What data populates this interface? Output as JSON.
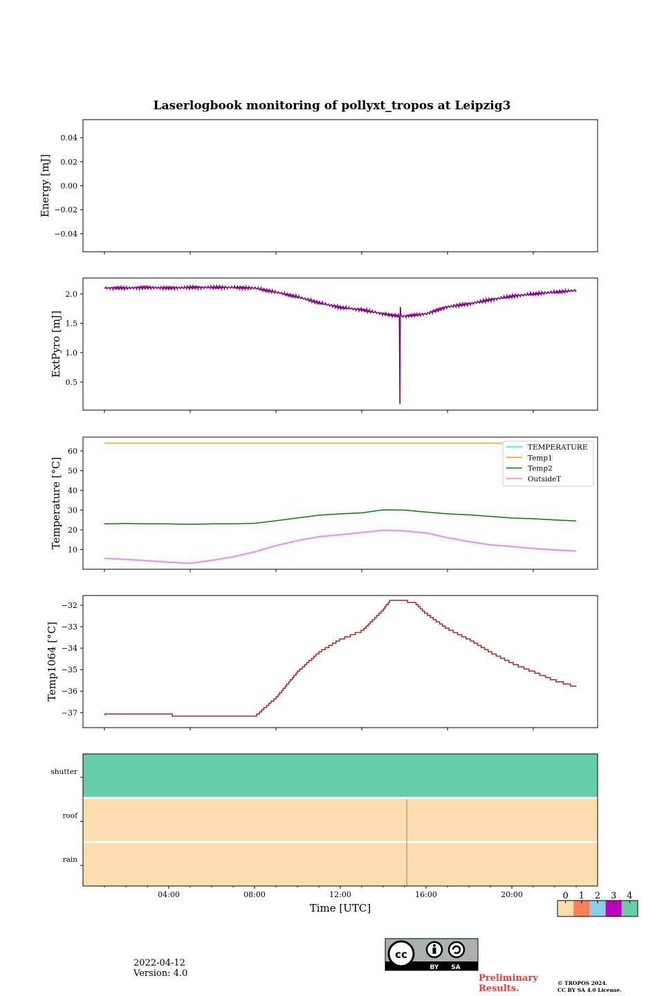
{
  "title": "Laserlogbook monitoring of pollyxt_tropos at Leipzig3",
  "chart_data": [
    {
      "type": "line",
      "ylabel": "Energy [mJ]",
      "ylim": [
        -0.055,
        0.055
      ],
      "yticks": [
        "0.04",
        "0.02",
        "0.00",
        "−0.02",
        "−0.04"
      ],
      "ytick_values": [
        0.04,
        0.02,
        0,
        -0.02,
        -0.04
      ],
      "series": []
    },
    {
      "type": "line",
      "ylabel": "ExtPyro [mJ]",
      "ylim": [
        0.02,
        2.27
      ],
      "yticks": [
        "2.0",
        "1.5",
        "1.0",
        "0.5"
      ],
      "ytick_values": [
        2.0,
        1.5,
        1.0,
        0.5
      ],
      "series": [
        {
          "name": "ExtPyro",
          "color": "#800080",
          "x": [
            1,
            2,
            3,
            4,
            5,
            6,
            7,
            8,
            9,
            10,
            11,
            12,
            13,
            14,
            14.75,
            14.78,
            14.8,
            14.83,
            15,
            16,
            17,
            18,
            19,
            20,
            21,
            22,
            23
          ],
          "y": [
            2.1,
            2.1,
            2.11,
            2.1,
            2.11,
            2.11,
            2.11,
            2.1,
            2.03,
            1.95,
            1.85,
            1.77,
            1.73,
            1.66,
            1.62,
            0.12,
            1.78,
            1.62,
            1.62,
            1.66,
            1.78,
            1.83,
            1.9,
            1.96,
            2.0,
            2.03,
            2.06
          ]
        }
      ]
    },
    {
      "type": "line",
      "ylabel": "Temperature [°C]",
      "ylim": [
        0,
        67
      ],
      "yticks": [
        "60",
        "50",
        "40",
        "30",
        "20",
        "10"
      ],
      "ytick_values": [
        60,
        50,
        40,
        30,
        20,
        10
      ],
      "legend": "top-right",
      "series": [
        {
          "name": "TEMPERATURE",
          "color": "#00ffff",
          "x": [],
          "y": []
        },
        {
          "name": "Temp1",
          "color": "#ffa500",
          "x": [
            1,
            23
          ],
          "y": [
            64,
            64
          ]
        },
        {
          "name": "Temp2",
          "color": "#008000",
          "x": [
            1,
            2,
            3,
            4,
            5,
            6,
            7,
            8,
            9,
            10,
            11,
            12,
            13,
            14,
            15,
            16,
            17,
            18,
            19,
            20,
            21,
            22,
            23
          ],
          "y": [
            23,
            23.2,
            23,
            23,
            22.8,
            23,
            23,
            23.3,
            24.6,
            26,
            27.4,
            28.1,
            28.6,
            30.1,
            30,
            29,
            28.1,
            27.6,
            26.8,
            26,
            25.6,
            25,
            24.5
          ]
        },
        {
          "name": "OutsideT",
          "color": "#ee82ee",
          "x": [
            1,
            2,
            3,
            4,
            5,
            6,
            7,
            8,
            9,
            10,
            11,
            12,
            13,
            14,
            15,
            16,
            17,
            18,
            19,
            20,
            21,
            22,
            23
          ],
          "y": [
            5.5,
            5,
            4.3,
            3.6,
            3,
            4.5,
            6.3,
            8.8,
            12,
            14.5,
            16.5,
            17.5,
            18.6,
            19.8,
            19.4,
            18.4,
            16,
            14,
            12.4,
            11.5,
            10.5,
            9.8,
            9.2
          ]
        }
      ]
    },
    {
      "type": "line",
      "ylabel": "Temp1064 [°C]",
      "ylim": [
        -37.7,
        -31.55
      ],
      "yticks": [
        "−32",
        "−33",
        "−34",
        "−35",
        "−36",
        "−37"
      ],
      "ytick_values": [
        -32,
        -33,
        -34,
        -35,
        -36,
        -37
      ],
      "series": [
        {
          "name": "Temp1064",
          "color": "#b22222",
          "x": [
            1,
            2,
            3,
            4,
            5,
            6,
            7,
            8,
            9,
            10,
            11,
            12,
            13,
            14,
            14.3,
            15,
            15.5,
            16,
            17,
            18,
            19,
            20,
            21,
            22,
            23
          ],
          "y": [
            -37.1,
            -37.05,
            -37.1,
            -37.1,
            -37.2,
            -37.15,
            -37.2,
            -37.2,
            -36.3,
            -35.1,
            -34.2,
            -33.6,
            -33.2,
            -32.2,
            -31.8,
            -31.8,
            -31.9,
            -32.4,
            -33.1,
            -33.6,
            -34.2,
            -34.7,
            -35.1,
            -35.5,
            -35.8
          ]
        }
      ]
    },
    {
      "type": "heatmap",
      "rows": [
        "shutter",
        "roof",
        "rain"
      ],
      "row_values": [
        4,
        0,
        0
      ],
      "marker_hour": 15.1,
      "xlabel": "Time [UTC]",
      "xticks": [
        "04:00",
        "08:00",
        "12:00",
        "16:00",
        "20:00"
      ],
      "xtick_hours": [
        4,
        8,
        12,
        16,
        20
      ],
      "xlim": [
        0,
        24
      ],
      "colorbar": {
        "labels": [
          "0",
          "1",
          "2",
          "3",
          "4"
        ],
        "colors": [
          "#fdddaf",
          "#ff7f50",
          "#87ceeb",
          "#bf00bf",
          "#66cdaa"
        ]
      }
    }
  ],
  "footer": {
    "date": "2022-04-12",
    "version": "Version: 4.0",
    "preliminary": [
      "Preliminary",
      "Results."
    ],
    "copyright": [
      "© TROPOS 2024.",
      "CC BY SA 4.0 License."
    ],
    "license_badge": [
      "BY",
      "SA"
    ]
  }
}
